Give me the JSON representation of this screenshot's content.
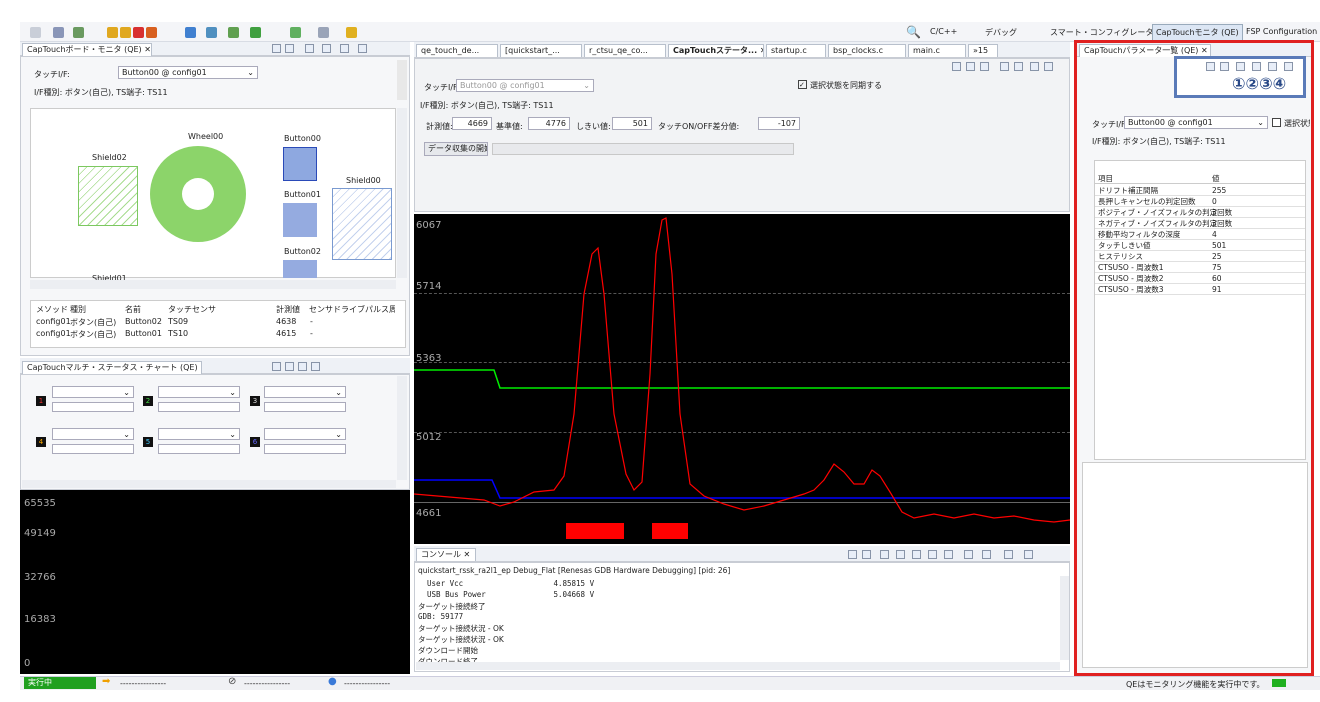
{
  "toolbar": {
    "search_icon": "search-icon",
    "perspectives": [
      "C/C++",
      "デバッグ",
      "スマート・コンフィグレータ",
      "CapTouchモニタ (QE)",
      "FSP Configuration"
    ]
  },
  "board_monitor": {
    "tab": "CapTouchボード・モニタ (QE)",
    "touch_if_label": "タッチI/F:",
    "touch_if_value": "Button00 @ config01",
    "if_type": "I/F種別: ボタン(自己), TS端子: TS11",
    "elements": [
      "Wheel00",
      "Button00",
      "Shield02",
      "Button01",
      "Shield00",
      "Button02",
      "Shield01"
    ],
    "table_headers": [
      "メソッド",
      "種別",
      "名前",
      "タッチセンサ",
      "計測値",
      "センサドライブパルス周波数"
    ],
    "table_rows": [
      [
        "config01",
        "ボタン(自己)",
        "Button02",
        "TS09",
        "4638",
        "-"
      ],
      [
        "config01",
        "ボタン(自己)",
        "Button01",
        "TS10",
        "4615",
        "-"
      ]
    ]
  },
  "multi_chart": {
    "tab": "CapTouchマルチ・ステータス・チャート (QE)",
    "channels": [
      "1",
      "2",
      "3",
      "4",
      "5",
      "6"
    ],
    "y_ticks": [
      "65535",
      "49149",
      "32766",
      "16383",
      "0"
    ]
  },
  "editor_tabs": [
    "qe_touch_de...",
    "[quickstart_...",
    "r_ctsu_qe_co...",
    "CapTouchステータ...",
    "startup.c",
    "bsp_clocks.c",
    "main.c",
    "»15"
  ],
  "status_chart": {
    "touch_if_label": "タッチI/F:",
    "touch_if_value": "Button00 @ config01",
    "sync_label": "選択状態を同期する",
    "if_type": "I/F種別: ボタン(自己), TS端子: TS11",
    "measured_label": "計測値:",
    "measured_value": "4669",
    "baseline_label": "基準値:",
    "baseline_value": "4776",
    "threshold_label": "しきい値:",
    "threshold_value": "501",
    "delta_label": "タッチON/OFF差分値:",
    "delta_value": "-107",
    "collect_button": "データ収集の開始",
    "y_ticks": [
      "6067",
      "5714",
      "5363",
      "5012",
      "4661"
    ]
  },
  "console": {
    "tab": "コンソール",
    "session": "quickstart_rssk_ra2l1_ep Debug_Flat [Renesas GDB Hardware Debugging] [pid: 26]",
    "lines": [
      "  User Vcc                    4.85815 V",
      "  USB Bus Power               5.04668 V",
      "ターゲット接続終了",
      "GDB: 59177",
      "ターゲット接続状況 - OK",
      "ターゲット接続状況 - OK",
      "ダウンロード開始",
      "ダウンロード終了"
    ]
  },
  "params": {
    "tab": "CapTouchパラメータ一覧 (QE)",
    "callouts": "①②③④",
    "touch_if_label": "タッチI/F:",
    "touch_if_value": "Button00 @ config01",
    "select_label": "選択状態",
    "if_type": "I/F種別: ボタン(自己), TS端子: TS11",
    "headers": [
      "項目",
      "値"
    ],
    "rows": [
      [
        "ドリフト補正間隔",
        "255"
      ],
      [
        "長押しキャンセルの判定回数",
        "0"
      ],
      [
        "ポジティブ・ノイズフィルタの判定回数",
        "3"
      ],
      [
        "ネガティブ・ノイズフィルタの判定回数",
        "3"
      ],
      [
        "移動平均フィルタの深度",
        "4"
      ],
      [
        "タッチしきい値",
        "501"
      ],
      [
        "ヒステリシス",
        "25"
      ],
      [
        "CTSUSO - 周波数1",
        "75"
      ],
      [
        "CTSUSO - 周波数2",
        "60"
      ],
      [
        "CTSUSO - 周波数3",
        "91"
      ]
    ]
  },
  "status_bar": {
    "state": "実行中",
    "dashes1": "----------------",
    "dashes2": "----------------",
    "dashes3": "----------------",
    "message": "QEはモニタリング機能を実行中です。"
  },
  "colors": {
    "highlight": "#e02020",
    "measured": "#ff0000",
    "baseline": "#00ee00",
    "threshold": "#0000ff"
  }
}
